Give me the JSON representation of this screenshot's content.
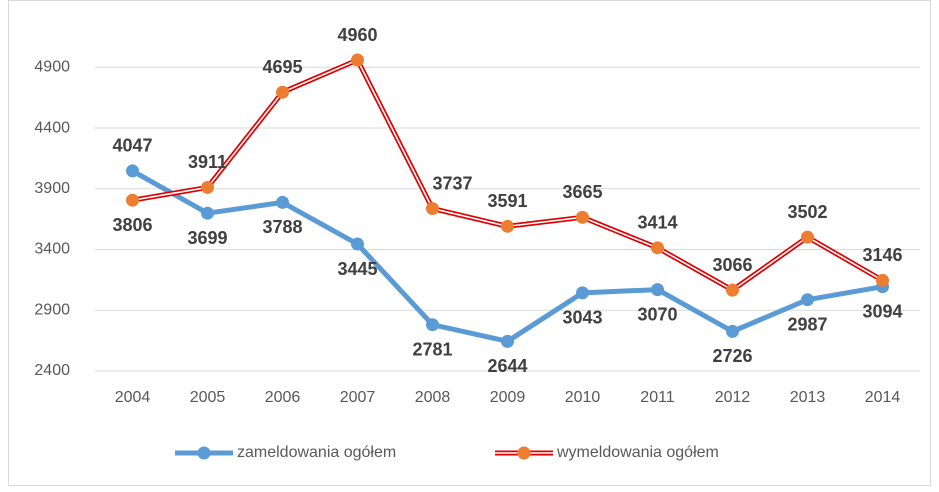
{
  "chart_data": {
    "type": "line",
    "categories": [
      "2004",
      "2005",
      "2006",
      "2007",
      "2008",
      "2009",
      "2010",
      "2011",
      "2012",
      "2013",
      "2014"
    ],
    "series": [
      {
        "name": "zameldowania ogółem",
        "color": "#5b9bd5",
        "values": [
          4047,
          3699,
          3788,
          3445,
          2781,
          2644,
          3043,
          3070,
          2726,
          2987,
          3094
        ]
      },
      {
        "name": "wymeldowania ogółem",
        "color": "#ed7d31",
        "line_color": "#e00000",
        "values": [
          3806,
          3911,
          4695,
          4960,
          3737,
          3591,
          3665,
          3414,
          3066,
          3502,
          3146
        ]
      }
    ],
    "ylim": [
      2400,
      5100
    ],
    "yticks": [
      2400,
      2900,
      3400,
      3900,
      4400,
      4900
    ],
    "grid": true,
    "legend": "bottom"
  }
}
